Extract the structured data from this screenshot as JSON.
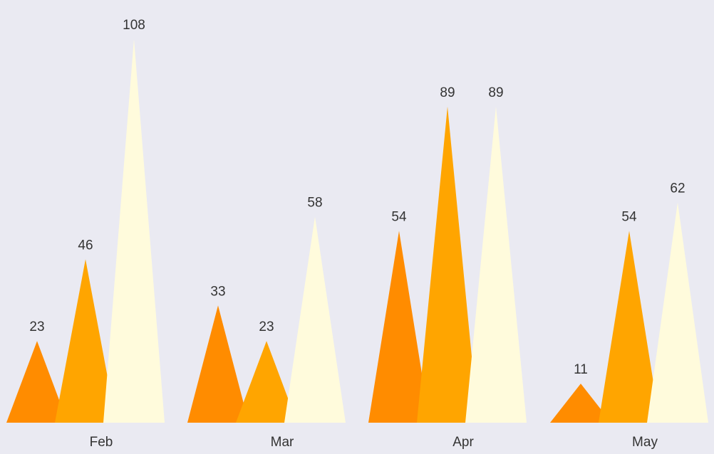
{
  "chart_data": {
    "type": "bar",
    "categories": [
      "Feb",
      "Mar",
      "Apr",
      "May"
    ],
    "series": [
      {
        "values": [
          23,
          33,
          54,
          11
        ],
        "color": "#ff8c00"
      },
      {
        "values": [
          46,
          23,
          89,
          54
        ],
        "color": "#ffa500"
      },
      {
        "values": [
          108,
          58,
          89,
          62
        ],
        "color": "#fffbdc"
      }
    ],
    "ylim": [
      0,
      108
    ],
    "grid": false,
    "mark_shape": "triangle",
    "background": "#eaeaf2"
  }
}
